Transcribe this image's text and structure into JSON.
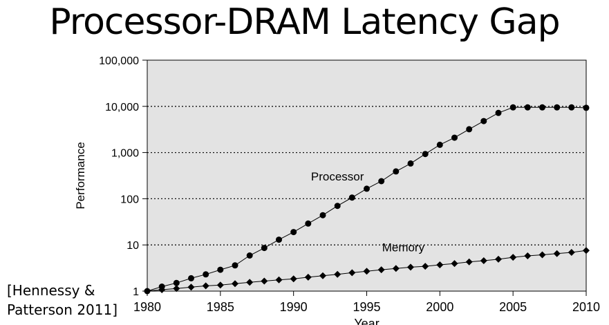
{
  "page": {
    "title": "Processor-DRAM Latency Gap",
    "citation_line1": "[Hennessy &",
    "citation_line2": "Patterson 2011]"
  },
  "colors": {
    "plot_background": "#e3e3e3",
    "series": "#000000",
    "text": "#000000"
  },
  "chart_data": {
    "type": "line",
    "xlabel": "Year",
    "ylabel": "Performance",
    "xlim": [
      1980,
      2010
    ],
    "ylim": [
      1,
      100000
    ],
    "yscale": "log",
    "grid": "horizontal dotted",
    "x_ticks": [
      1980,
      1985,
      1990,
      1995,
      2000,
      2005,
      2010
    ],
    "y_ticks": [
      {
        "value": 1,
        "label": "1"
      },
      {
        "value": 10,
        "label": "10"
      },
      {
        "value": 100,
        "label": "100"
      },
      {
        "value": 1000,
        "label": "1,000"
      },
      {
        "value": 10000,
        "label": "10,000"
      },
      {
        "value": 100000,
        "label": "100,000"
      }
    ],
    "series": [
      {
        "name": "Processor",
        "marker": "circle",
        "label_at": [
          1993,
          250
        ],
        "x": [
          1980,
          1981,
          1982,
          1983,
          1984,
          1985,
          1986,
          1987,
          1988,
          1989,
          1990,
          1991,
          1992,
          1993,
          1994,
          1995,
          1996,
          1997,
          1998,
          1999,
          2000,
          2001,
          2002,
          2003,
          2004,
          2005,
          2006,
          2007,
          2008,
          2009,
          2010
        ],
        "y": [
          1,
          1.25,
          1.5,
          1.9,
          2.3,
          2.9,
          3.6,
          5.9,
          8.6,
          13,
          19,
          29,
          44,
          70,
          106,
          165,
          240,
          390,
          580,
          930,
          1470,
          2100,
          3200,
          4800,
          7200,
          9500,
          9500,
          9500,
          9500,
          9500,
          9300
        ]
      },
      {
        "name": "Memory",
        "marker": "diamond",
        "label_at": [
          1997.5,
          7.3
        ],
        "x": [
          1980,
          1981,
          1982,
          1983,
          1984,
          1985,
          1986,
          1987,
          1988,
          1989,
          1990,
          1991,
          1992,
          1993,
          1994,
          1995,
          1996,
          1997,
          1998,
          1999,
          2000,
          2001,
          2002,
          2003,
          2004,
          2005,
          2006,
          2007,
          2008,
          2009,
          2010
        ],
        "y": [
          1,
          1.07,
          1.14,
          1.22,
          1.3,
          1.35,
          1.45,
          1.55,
          1.65,
          1.75,
          1.85,
          2,
          2.15,
          2.3,
          2.5,
          2.7,
          2.9,
          3.1,
          3.3,
          3.45,
          3.7,
          3.95,
          4.3,
          4.55,
          4.9,
          5.4,
          5.8,
          6.1,
          6.5,
          6.9,
          7.6
        ]
      }
    ]
  }
}
